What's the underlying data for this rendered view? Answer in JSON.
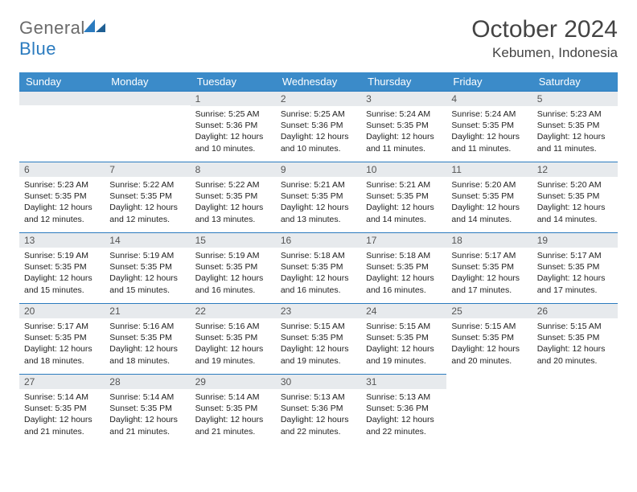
{
  "brand": {
    "general": "General",
    "blue": "Blue"
  },
  "title": "October 2024",
  "subtitle": "Kebumen, Indonesia",
  "headers": [
    "Sunday",
    "Monday",
    "Tuesday",
    "Wednesday",
    "Thursday",
    "Friday",
    "Saturday"
  ],
  "colors": {
    "header_bg": "#3b8bc9",
    "daynum_bg": "#e7eaed",
    "border_top": "#2b7bbf",
    "logo_blue": "#2b7bbf",
    "logo_gray": "#6b6b6b"
  },
  "weeks": [
    [
      null,
      null,
      {
        "n": "1",
        "sr": "5:25 AM",
        "ss": "5:36 PM",
        "dl": "12 hours and 10 minutes."
      },
      {
        "n": "2",
        "sr": "5:25 AM",
        "ss": "5:36 PM",
        "dl": "12 hours and 10 minutes."
      },
      {
        "n": "3",
        "sr": "5:24 AM",
        "ss": "5:35 PM",
        "dl": "12 hours and 11 minutes."
      },
      {
        "n": "4",
        "sr": "5:24 AM",
        "ss": "5:35 PM",
        "dl": "12 hours and 11 minutes."
      },
      {
        "n": "5",
        "sr": "5:23 AM",
        "ss": "5:35 PM",
        "dl": "12 hours and 11 minutes."
      }
    ],
    [
      {
        "n": "6",
        "sr": "5:23 AM",
        "ss": "5:35 PM",
        "dl": "12 hours and 12 minutes."
      },
      {
        "n": "7",
        "sr": "5:22 AM",
        "ss": "5:35 PM",
        "dl": "12 hours and 12 minutes."
      },
      {
        "n": "8",
        "sr": "5:22 AM",
        "ss": "5:35 PM",
        "dl": "12 hours and 13 minutes."
      },
      {
        "n": "9",
        "sr": "5:21 AM",
        "ss": "5:35 PM",
        "dl": "12 hours and 13 minutes."
      },
      {
        "n": "10",
        "sr": "5:21 AM",
        "ss": "5:35 PM",
        "dl": "12 hours and 14 minutes."
      },
      {
        "n": "11",
        "sr": "5:20 AM",
        "ss": "5:35 PM",
        "dl": "12 hours and 14 minutes."
      },
      {
        "n": "12",
        "sr": "5:20 AM",
        "ss": "5:35 PM",
        "dl": "12 hours and 14 minutes."
      }
    ],
    [
      {
        "n": "13",
        "sr": "5:19 AM",
        "ss": "5:35 PM",
        "dl": "12 hours and 15 minutes."
      },
      {
        "n": "14",
        "sr": "5:19 AM",
        "ss": "5:35 PM",
        "dl": "12 hours and 15 minutes."
      },
      {
        "n": "15",
        "sr": "5:19 AM",
        "ss": "5:35 PM",
        "dl": "12 hours and 16 minutes."
      },
      {
        "n": "16",
        "sr": "5:18 AM",
        "ss": "5:35 PM",
        "dl": "12 hours and 16 minutes."
      },
      {
        "n": "17",
        "sr": "5:18 AM",
        "ss": "5:35 PM",
        "dl": "12 hours and 16 minutes."
      },
      {
        "n": "18",
        "sr": "5:17 AM",
        "ss": "5:35 PM",
        "dl": "12 hours and 17 minutes."
      },
      {
        "n": "19",
        "sr": "5:17 AM",
        "ss": "5:35 PM",
        "dl": "12 hours and 17 minutes."
      }
    ],
    [
      {
        "n": "20",
        "sr": "5:17 AM",
        "ss": "5:35 PM",
        "dl": "12 hours and 18 minutes."
      },
      {
        "n": "21",
        "sr": "5:16 AM",
        "ss": "5:35 PM",
        "dl": "12 hours and 18 minutes."
      },
      {
        "n": "22",
        "sr": "5:16 AM",
        "ss": "5:35 PM",
        "dl": "12 hours and 19 minutes."
      },
      {
        "n": "23",
        "sr": "5:15 AM",
        "ss": "5:35 PM",
        "dl": "12 hours and 19 minutes."
      },
      {
        "n": "24",
        "sr": "5:15 AM",
        "ss": "5:35 PM",
        "dl": "12 hours and 19 minutes."
      },
      {
        "n": "25",
        "sr": "5:15 AM",
        "ss": "5:35 PM",
        "dl": "12 hours and 20 minutes."
      },
      {
        "n": "26",
        "sr": "5:15 AM",
        "ss": "5:35 PM",
        "dl": "12 hours and 20 minutes."
      }
    ],
    [
      {
        "n": "27",
        "sr": "5:14 AM",
        "ss": "5:35 PM",
        "dl": "12 hours and 21 minutes."
      },
      {
        "n": "28",
        "sr": "5:14 AM",
        "ss": "5:35 PM",
        "dl": "12 hours and 21 minutes."
      },
      {
        "n": "29",
        "sr": "5:14 AM",
        "ss": "5:35 PM",
        "dl": "12 hours and 21 minutes."
      },
      {
        "n": "30",
        "sr": "5:13 AM",
        "ss": "5:36 PM",
        "dl": "12 hours and 22 minutes."
      },
      {
        "n": "31",
        "sr": "5:13 AM",
        "ss": "5:36 PM",
        "dl": "12 hours and 22 minutes."
      },
      null,
      null
    ]
  ],
  "labels": {
    "sunrise": "Sunrise:",
    "sunset": "Sunset:",
    "daylight": "Daylight:"
  }
}
